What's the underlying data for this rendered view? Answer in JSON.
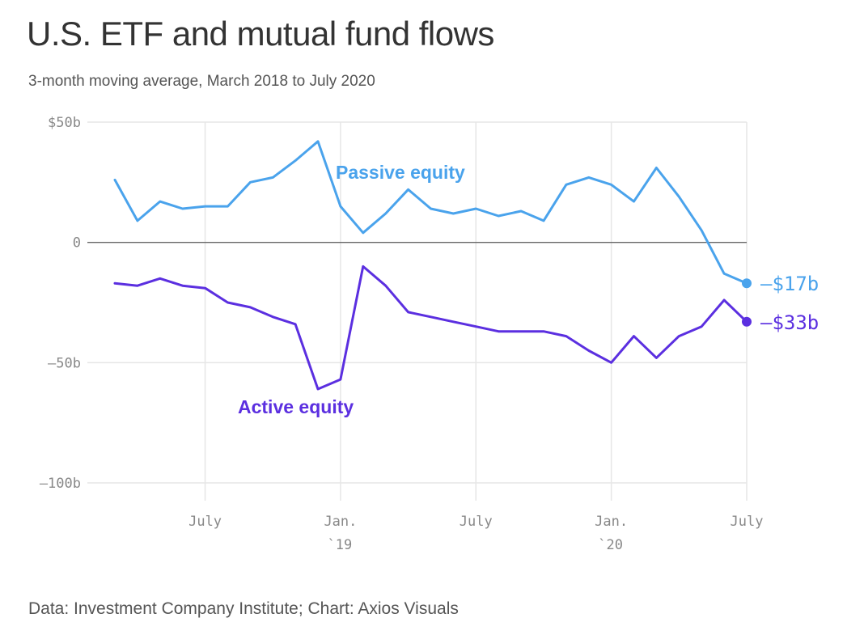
{
  "header": {
    "title": "U.S. ETF and mutual fund flows",
    "subtitle": "3-month moving average, March 2018 to July 2020"
  },
  "footer": {
    "source": "Data: Investment Company Institute; Chart: Axios Visuals"
  },
  "colors": {
    "passive": "#4aa3ec",
    "active": "#5b2fe0",
    "grid": "#e6e6e6",
    "zero_line": "#666666"
  },
  "chart_data": {
    "type": "line",
    "title": "U.S. ETF and mutual fund flows",
    "subtitle": "3-month moving average, March 2018 to July 2020",
    "x": [
      "2018-03",
      "2018-04",
      "2018-05",
      "2018-06",
      "2018-07",
      "2018-08",
      "2018-09",
      "2018-10",
      "2018-11",
      "2018-12",
      "2019-01",
      "2019-02",
      "2019-03",
      "2019-04",
      "2019-05",
      "2019-06",
      "2019-07",
      "2019-08",
      "2019-09",
      "2019-10",
      "2019-11",
      "2019-12",
      "2020-01",
      "2020-02",
      "2020-03",
      "2020-04",
      "2020-05",
      "2020-06",
      "2020-07"
    ],
    "series": [
      {
        "name": "Passive equity",
        "label": "Passive equity",
        "end_label": "–$17b",
        "values": [
          26,
          9,
          17,
          14,
          15,
          15,
          25,
          27,
          34,
          42,
          15,
          4,
          12,
          22,
          14,
          12,
          14,
          11,
          13,
          9,
          24,
          27,
          24,
          17,
          31,
          19,
          5,
          -13,
          -17
        ]
      },
      {
        "name": "Active equity",
        "label": "Active equity",
        "end_label": "–$33b",
        "values": [
          -17,
          -18,
          -15,
          -18,
          -19,
          -25,
          -27,
          -31,
          -34,
          -61,
          -57,
          -10,
          -18,
          -29,
          -31,
          -33,
          -35,
          -37,
          -37,
          -37,
          -39,
          -45,
          -50,
          -39,
          -48,
          -39,
          -35,
          -24,
          -33
        ]
      }
    ],
    "ylim": [
      -100,
      50
    ],
    "yticks": [
      {
        "value": 50,
        "label": "$50b"
      },
      {
        "value": 0,
        "label": "0"
      },
      {
        "value": -50,
        "label": "–50b"
      },
      {
        "value": -100,
        "label": "–100b"
      }
    ],
    "xticks": [
      {
        "index": 4,
        "label": "July",
        "sublabel": ""
      },
      {
        "index": 10,
        "label": "Jan.",
        "sublabel": "`19"
      },
      {
        "index": 16,
        "label": "July",
        "sublabel": ""
      },
      {
        "index": 22,
        "label": "Jan.",
        "sublabel": "`20"
      },
      {
        "index": 28,
        "label": "July",
        "sublabel": ""
      }
    ],
    "xlabel": "",
    "ylabel": "",
    "grid": true
  }
}
